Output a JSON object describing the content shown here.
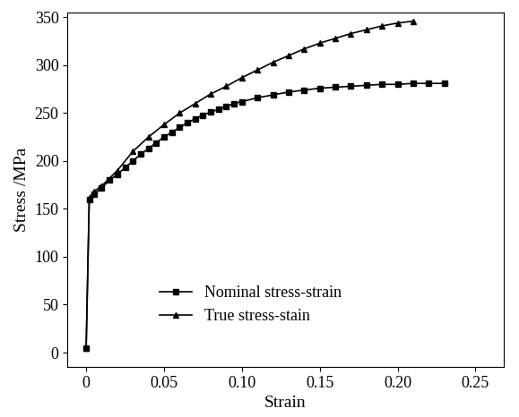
{
  "chart_data": {
    "type": "line",
    "x_label": "Strain",
    "y_label": "Stress /MPa",
    "xlim": [
      -0.012,
      0.268
    ],
    "ylim": [
      -15,
      355
    ],
    "xticks": [
      0,
      {
        "value": 0.05,
        "label": "0.05"
      },
      {
        "value": 0.1,
        "label": "0.10"
      },
      {
        "value": 0.15,
        "label": "0.15"
      },
      {
        "value": 0.2,
        "label": "0.20"
      },
      {
        "value": 0.25,
        "label": "0.25"
      }
    ],
    "yticks": [
      0,
      50,
      100,
      150,
      200,
      250,
      300,
      350
    ],
    "grid": false,
    "legend": "lower center",
    "series": [
      {
        "name": "Nominal stress-strain",
        "color": "#000000",
        "marker": "square",
        "line_style": "solid",
        "x": [
          0,
          0.002,
          0.005,
          0.01,
          0.015,
          0.02,
          0.025,
          0.03,
          0.035,
          0.04,
          0.045,
          0.05,
          0.055,
          0.06,
          0.065,
          0.07,
          0.075,
          0.08,
          0.085,
          0.09,
          0.095,
          0.1,
          0.11,
          0.12,
          0.13,
          0.14,
          0.15,
          0.16,
          0.17,
          0.18,
          0.19,
          0.2,
          0.21,
          0.22,
          0.23
        ],
        "values": [
          5,
          160,
          165,
          172,
          180,
          186,
          193,
          200,
          207,
          213,
          219,
          225,
          230,
          235,
          240,
          244,
          248,
          251,
          254,
          257,
          260,
          262,
          266,
          269,
          272,
          274,
          276,
          277,
          278,
          279,
          280,
          280,
          281,
          281,
          281
        ]
      },
      {
        "name": "True stress-stain",
        "color": "#000000",
        "marker": "triangle",
        "line_style": "solid",
        "x": [
          0,
          0.002,
          0.005,
          0.01,
          0.02,
          0.03,
          0.04,
          0.05,
          0.06,
          0.07,
          0.08,
          0.09,
          0.1,
          0.11,
          0.12,
          0.13,
          0.14,
          0.15,
          0.16,
          0.17,
          0.18,
          0.19,
          0.2,
          0.21
        ],
        "values": [
          5,
          162,
          168,
          174,
          190,
          210,
          225,
          238,
          250,
          260,
          270,
          278,
          287,
          295,
          303,
          310,
          317,
          323,
          328,
          333,
          337,
          341,
          344,
          346
        ]
      }
    ]
  }
}
